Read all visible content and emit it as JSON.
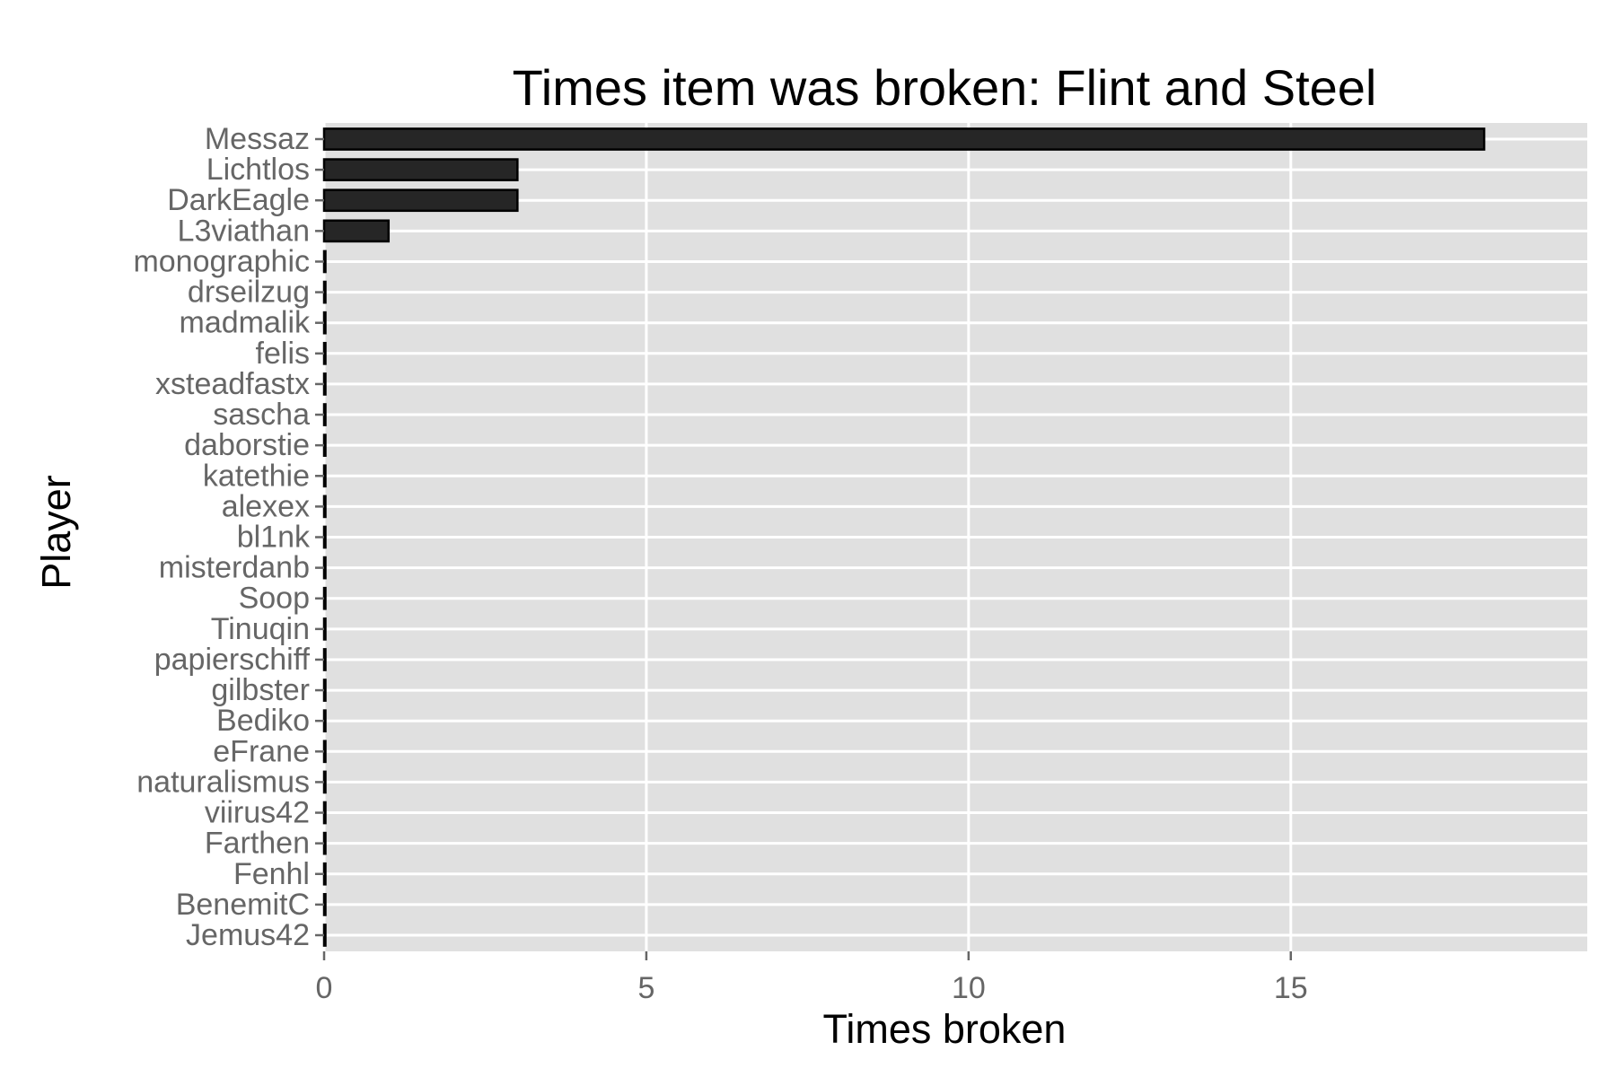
{
  "chart_data": {
    "type": "bar",
    "orientation": "horizontal",
    "title": "Times item was broken: Flint and Steel",
    "xlabel": "Times broken",
    "ylabel": "Player",
    "categories": [
      "Messaz",
      "Lichtlos",
      "DarkEagle",
      "L3viathan",
      "monographic",
      "drseilzug",
      "madmalik",
      "felis",
      "xsteadfastx",
      "sascha",
      "daborstie",
      "katethie",
      "alexex",
      "bl1nk",
      "misterdanb",
      "Soop",
      "Tinuqin",
      "papierschiff",
      "gilbster",
      "Bediko",
      "eFrane",
      "naturalismus",
      "viirus42",
      "Farthen",
      "Fenhl",
      "BenemitC",
      "Jemus42"
    ],
    "values": [
      18,
      3,
      3,
      1,
      0,
      0,
      0,
      0,
      0,
      0,
      0,
      0,
      0,
      0,
      0,
      0,
      0,
      0,
      0,
      0,
      0,
      0,
      0,
      0,
      0,
      0,
      0
    ],
    "xlim": [
      0,
      19.6
    ],
    "xticks": [
      0,
      5,
      10,
      15
    ],
    "grid": true,
    "legend": "none",
    "colors": {
      "bar_fill": "#262626",
      "bar_outline": "#000000",
      "panel": "#e0e0e0",
      "grid": "#ffffff",
      "tick_label": "#666666"
    }
  }
}
